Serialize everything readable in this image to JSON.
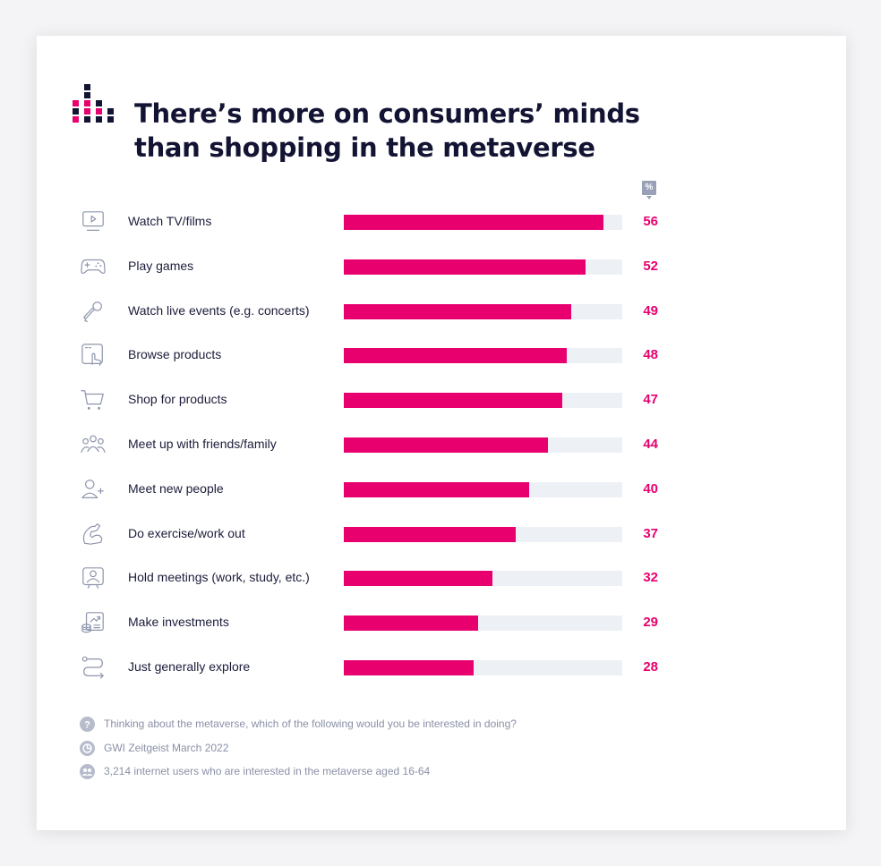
{
  "header": {
    "title_line1": "There’s more on consumers’ minds",
    "title_line2": "than shopping in the metaverse",
    "unit": "%"
  },
  "colors": {
    "accent": "#e8006f",
    "track": "#edf0f5",
    "title": "#131433",
    "muted": "#8a90a6"
  },
  "chart_data": {
    "type": "bar",
    "orientation": "horizontal",
    "categories": [
      "Watch TV/films",
      "Play games",
      "Watch live events (e.g. concerts)",
      "Browse products",
      "Shop for products",
      "Meet up with friends/family",
      "Meet new people",
      "Do exercise/work out",
      "Hold meetings (work, study, etc.)",
      "Make investments",
      "Just generally explore"
    ],
    "values": [
      56,
      52,
      49,
      48,
      47,
      44,
      40,
      37,
      32,
      29,
      28
    ],
    "icons": [
      "tv-icon",
      "gamepad-icon",
      "microphone-icon",
      "browse-pointer-icon",
      "shopping-cart-icon",
      "group-icon",
      "add-person-icon",
      "flexed-arm-icon",
      "video-meeting-icon",
      "investment-icon",
      "explore-path-icon"
    ],
    "unit": "%",
    "xlim": [
      0,
      60
    ],
    "grid": false,
    "data_labels": true
  },
  "footer": {
    "question": "Thinking about the metaverse, which of the following would you be interested in doing?",
    "source": "GWI Zeitgeist March 2022",
    "base": "3,214 internet users who are interested in the metaverse aged 16-64",
    "icons": [
      "question-icon",
      "source-icon",
      "audience-icon"
    ]
  }
}
